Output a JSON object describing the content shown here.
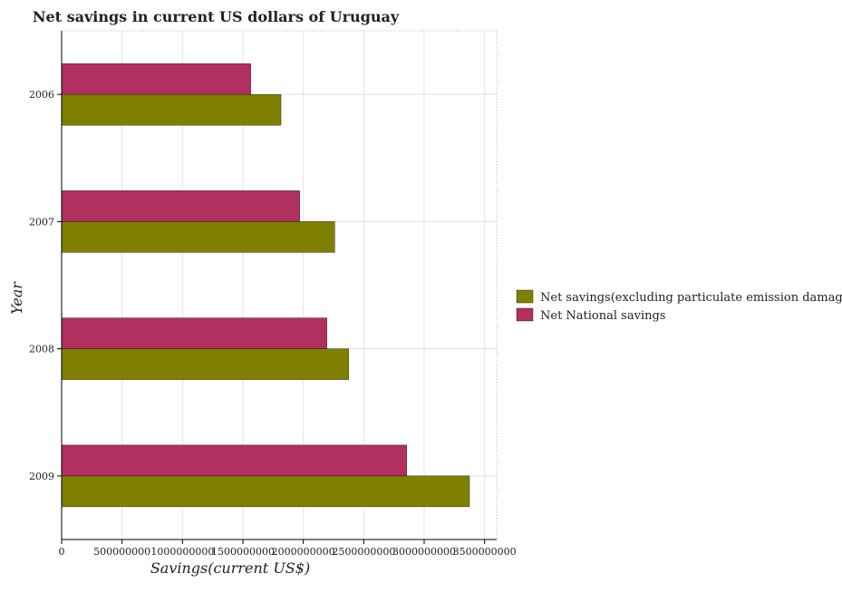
{
  "chart_data": {
    "type": "bar",
    "orientation": "horizontal",
    "title": "Net savings in current US dollars of Uruguay",
    "xlabel": "Savings(current US$)",
    "ylabel": "Year",
    "categories": [
      "2006",
      "2007",
      "2008",
      "2009"
    ],
    "series": [
      {
        "name": "Net savings(excluding particulate emission damage)",
        "color": "#808000",
        "values": [
          1815000000,
          2260000000,
          2375000000,
          3375000000
        ]
      },
      {
        "name": "Net National savings",
        "color": "#b03060",
        "values": [
          1565000000,
          1970000000,
          2195000000,
          2855000000
        ]
      }
    ],
    "xlim": [
      0,
      3600000000
    ],
    "xticks": [
      0,
      500000000,
      1000000000,
      1500000000,
      2000000000,
      2500000000,
      3000000000,
      3500000000
    ],
    "xtick_labels": [
      "0",
      "500000000",
      "1000000000",
      "1500000000",
      "2000000000",
      "2500000000",
      "3000000000",
      "3500000000"
    ],
    "grid": true,
    "legend_position": "right"
  }
}
